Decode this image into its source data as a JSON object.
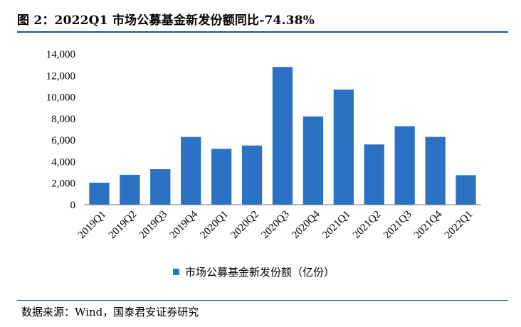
{
  "figure": {
    "title": "图 2：2022Q1 市场公募基金新发份额同比-74.38%",
    "source": "数据来源：Wind，国泰君安证券研究"
  },
  "colors": {
    "bar": "#2b72c4",
    "rule": "#1f4e8c",
    "axis": "#7f7f7f"
  },
  "chart_data": {
    "type": "bar",
    "title": "",
    "xlabel": "",
    "ylabel": "",
    "categories": [
      "2019Q1",
      "2019Q2",
      "2019Q3",
      "2019Q4",
      "2020Q1",
      "2020Q2",
      "2020Q3",
      "2020Q4",
      "2021Q1",
      "2021Q2",
      "2021Q3",
      "2021Q4",
      "2022Q1"
    ],
    "series": [
      {
        "name": "市场公募基金新发份额（亿份）",
        "values": [
          2050,
          2780,
          3300,
          6300,
          5200,
          5500,
          12800,
          8200,
          10700,
          5600,
          7300,
          6300,
          2750
        ]
      }
    ],
    "ylim": [
      0,
      14000
    ],
    "yticks": [
      0,
      2000,
      4000,
      6000,
      8000,
      10000,
      12000,
      14000
    ],
    "ytick_labels": [
      "0",
      "2,000",
      "4,000",
      "6,000",
      "8,000",
      "10,000",
      "12,000",
      "14,000"
    ],
    "grid": false,
    "legend_position": "bottom"
  }
}
